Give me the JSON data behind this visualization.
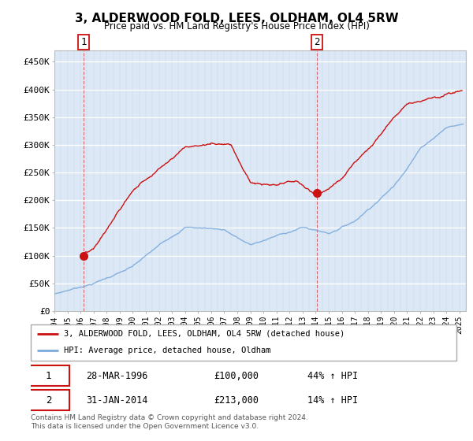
{
  "title": "3, ALDERWOOD FOLD, LEES, OLDHAM, OL4 5RW",
  "subtitle": "Price paid vs. HM Land Registry's House Price Index (HPI)",
  "ylabel_ticks": [
    "£0",
    "£50K",
    "£100K",
    "£150K",
    "£200K",
    "£250K",
    "£300K",
    "£350K",
    "£400K",
    "£450K"
  ],
  "ytick_values": [
    0,
    50000,
    100000,
    150000,
    200000,
    250000,
    300000,
    350000,
    400000,
    450000
  ],
  "ylim": [
    0,
    470000
  ],
  "xlim_start": 1994.0,
  "xlim_end": 2025.5,
  "sale1_x": 1996.23,
  "sale1_y": 100000,
  "sale2_x": 2014.08,
  "sale2_y": 213000,
  "line_color_hpi": "#7aaadd",
  "line_color_price": "#cc1111",
  "legend_line1": "3, ALDERWOOD FOLD, LEES, OLDHAM, OL4 5RW (detached house)",
  "legend_line2": "HPI: Average price, detached house, Oldham",
  "annotation1_date": "28-MAR-1996",
  "annotation1_price": "£100,000",
  "annotation1_hpi": "44% ↑ HPI",
  "annotation2_date": "31-JAN-2014",
  "annotation2_price": "£213,000",
  "annotation2_hpi": "14% ↑ HPI",
  "footer": "Contains HM Land Registry data © Crown copyright and database right 2024.\nThis data is licensed under the Open Government Licence v3.0.",
  "plot_bg_color": "#dce8f5",
  "grid_color": "#ffffff"
}
